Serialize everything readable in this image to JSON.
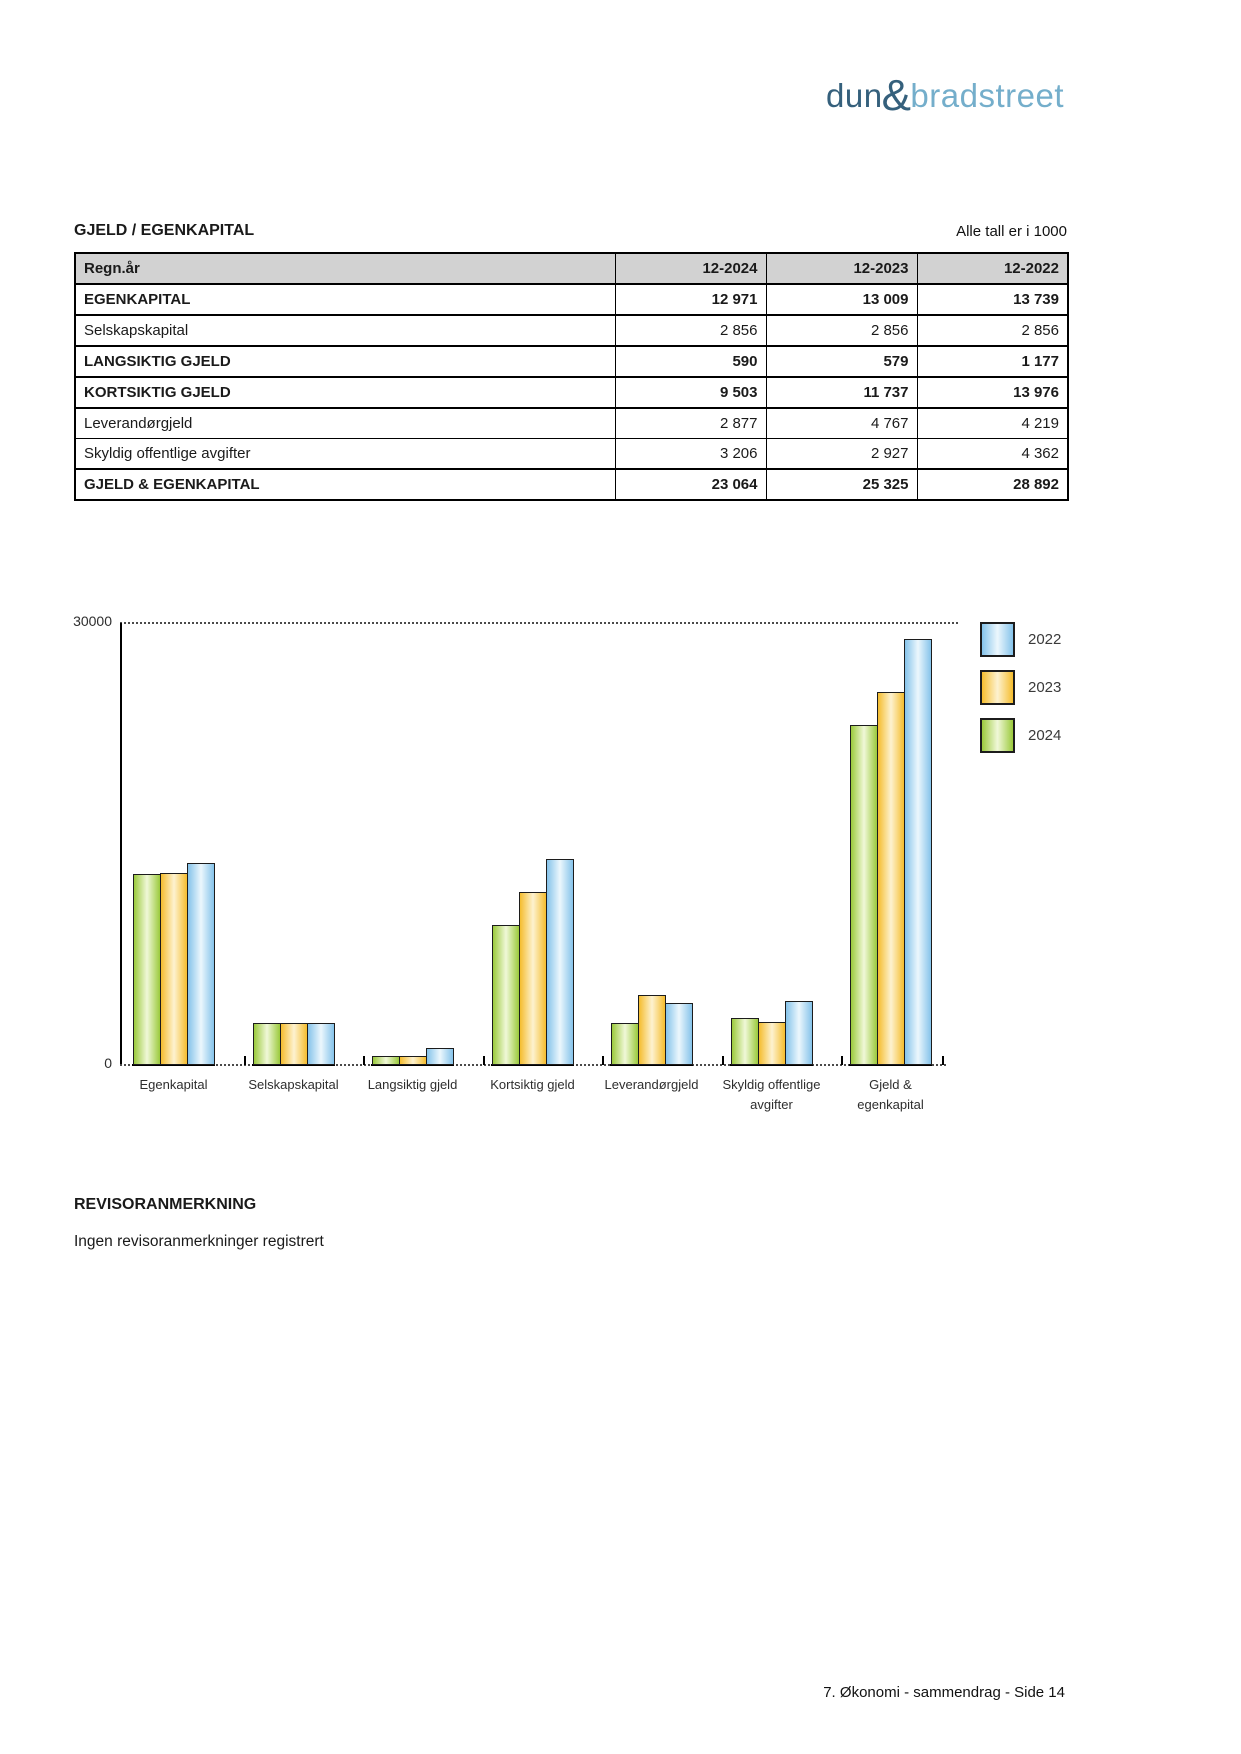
{
  "logo": {
    "part1": "dun",
    "amp": "&",
    "part2": "bradstreet"
  },
  "section": {
    "title": "GJELD / EGENKAPITAL",
    "unit_note": "Alle tall er i 1000"
  },
  "table": {
    "columns": [
      "Regn.år",
      "12-2024",
      "12-2023",
      "12-2022"
    ],
    "rows": [
      {
        "label": "EGENKAPITAL",
        "bold": true,
        "values": [
          "12 971",
          "13 009",
          "13 739"
        ]
      },
      {
        "label": "Selskapskapital",
        "bold": false,
        "values": [
          "2 856",
          "2 856",
          "2 856"
        ]
      },
      {
        "label": "LANGSIKTIG GJELD",
        "bold": true,
        "values": [
          "590",
          "579",
          "1 177"
        ]
      },
      {
        "label": "KORTSIKTIG GJELD",
        "bold": true,
        "values": [
          "9 503",
          "11 737",
          "13 976"
        ]
      },
      {
        "label": "Leverandørgjeld",
        "bold": false,
        "values": [
          "2 877",
          "4 767",
          "4 219"
        ]
      },
      {
        "label": "Skyldig offentlige avgifter",
        "bold": false,
        "values": [
          "3 206",
          "2 927",
          "4 362"
        ]
      },
      {
        "label": "GJELD & EGENKAPITAL",
        "bold": true,
        "values": [
          "23 064",
          "25 325",
          "28 892"
        ]
      }
    ]
  },
  "chart_data": {
    "type": "bar",
    "categories": [
      "Egenkapital",
      "Selskapskapital",
      "Langsiktig gjeld",
      "Kortsiktig gjeld",
      "Leverandørgjeld",
      "Skyldig offentlige\navgifter",
      "Gjeld &\negenkapital"
    ],
    "series": [
      {
        "name": "2024",
        "color": "green",
        "values": [
          12971,
          2856,
          590,
          9503,
          2877,
          3206,
          23064
        ]
      },
      {
        "name": "2023",
        "color": "orange",
        "values": [
          13009,
          2856,
          579,
          11737,
          4767,
          2927,
          25325
        ]
      },
      {
        "name": "2022",
        "color": "blue",
        "values": [
          13739,
          2856,
          1177,
          13976,
          4219,
          4362,
          28892
        ]
      }
    ],
    "ylim": [
      0,
      30000
    ],
    "ytick_labels": [
      "30000",
      "0"
    ],
    "grid": "top-dotted-line-at-30000",
    "legend": [
      "2022",
      "2023",
      "2024"
    ],
    "legend_position": "right"
  },
  "colors": {
    "bar_green": "#9bca3c",
    "bar_green_light": "#f0f8d8",
    "bar_orange": "#f5bd2e",
    "bar_orange_light": "#fdf2d0",
    "bar_blue": "#85c3ea",
    "bar_blue_light": "#ecf7fd",
    "table_header_bg": "#d2d2d2",
    "logo_dark": "#35607c",
    "logo_light": "#74aecb"
  },
  "revisor": {
    "heading": "REVISORANMERKNING",
    "text": "Ingen revisoranmerkninger registrert"
  },
  "footer": {
    "text": "7. Økonomi - sammendrag - Side 14"
  }
}
